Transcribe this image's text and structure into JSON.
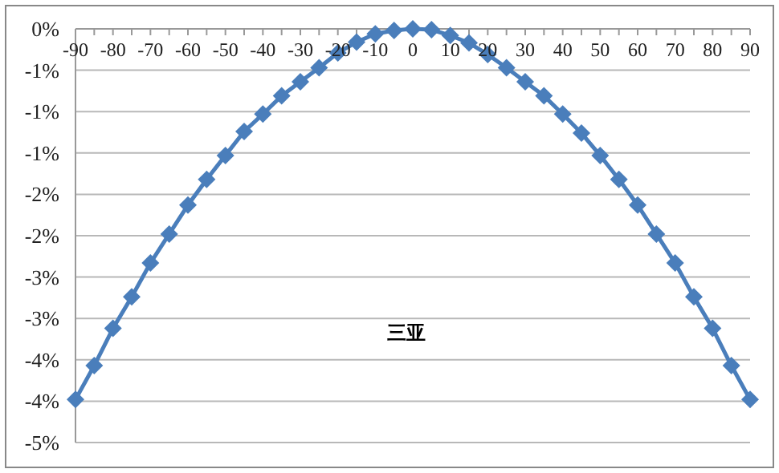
{
  "chart_data": {
    "type": "line",
    "annotations": [
      "三亚"
    ],
    "x": [
      -90,
      -85,
      -80,
      -75,
      -70,
      -65,
      -60,
      -55,
      -50,
      -45,
      -40,
      -35,
      -30,
      -25,
      -20,
      -15,
      -10,
      -5,
      0,
      5,
      10,
      15,
      20,
      25,
      30,
      35,
      40,
      45,
      50,
      55,
      60,
      65,
      70,
      75,
      80,
      85,
      90
    ],
    "series": [
      {
        "color": "#4a7ebb",
        "values": [
          -4.48,
          -4.07,
          -3.62,
          -3.24,
          -2.83,
          -2.48,
          -2.13,
          -1.82,
          -1.53,
          -1.24,
          -1.03,
          -0.81,
          -0.64,
          -0.47,
          -0.29,
          -0.16,
          -0.06,
          -0.02,
          0,
          -0.01,
          -0.08,
          -0.17,
          -0.31,
          -0.47,
          -0.64,
          -0.81,
          -1.03,
          -1.26,
          -1.53,
          -1.82,
          -2.13,
          -2.48,
          -2.83,
          -3.24,
          -3.62,
          -4.07,
          -4.48
        ]
      }
    ],
    "xlim": [
      -90,
      90
    ],
    "xticks": [
      -90,
      {
        "value": -85,
        "label": null
      },
      -80,
      {
        "value": -75,
        "label": null
      },
      -70,
      {
        "value": -65,
        "label": null
      },
      -60,
      {
        "value": -55,
        "label": null
      },
      -50,
      {
        "value": -45,
        "label": null
      },
      -40,
      {
        "value": -35,
        "label": null
      },
      -30,
      {
        "value": -25,
        "label": null
      },
      -20,
      {
        "value": -15,
        "label": null
      },
      -10,
      {
        "value": -5,
        "label": null
      },
      0,
      {
        "value": 5,
        "label": null
      },
      10,
      {
        "value": 15,
        "label": null
      },
      20,
      {
        "value": 25,
        "label": null
      },
      30,
      {
        "value": 35,
        "label": null
      },
      40,
      {
        "value": 45,
        "label": null
      },
      50,
      {
        "value": 55,
        "label": null
      },
      60,
      {
        "value": 65,
        "label": null
      },
      70,
      {
        "value": 75,
        "label": null
      },
      80,
      {
        "value": 85,
        "label": null
      },
      90
    ],
    "ylim": [
      -5,
      0
    ],
    "yticks": [
      {
        "value": 0,
        "label": "0%"
      },
      {
        "value": -0.5,
        "label": "-1%"
      },
      {
        "value": -1,
        "label": "-1%"
      },
      {
        "value": -1.5,
        "label": "-1%"
      },
      {
        "value": -2,
        "label": "-2%"
      },
      {
        "value": -2.5,
        "label": "-2%"
      },
      {
        "value": -3,
        "label": "-3%"
      },
      {
        "value": -3.5,
        "label": "-3%"
      },
      {
        "value": -4,
        "label": "-4%"
      },
      {
        "value": -4.5,
        "label": "-4%"
      },
      {
        "value": -5,
        "label": "-5%"
      }
    ],
    "grid": "y",
    "marker": "diamond",
    "line_style": "solid"
  }
}
